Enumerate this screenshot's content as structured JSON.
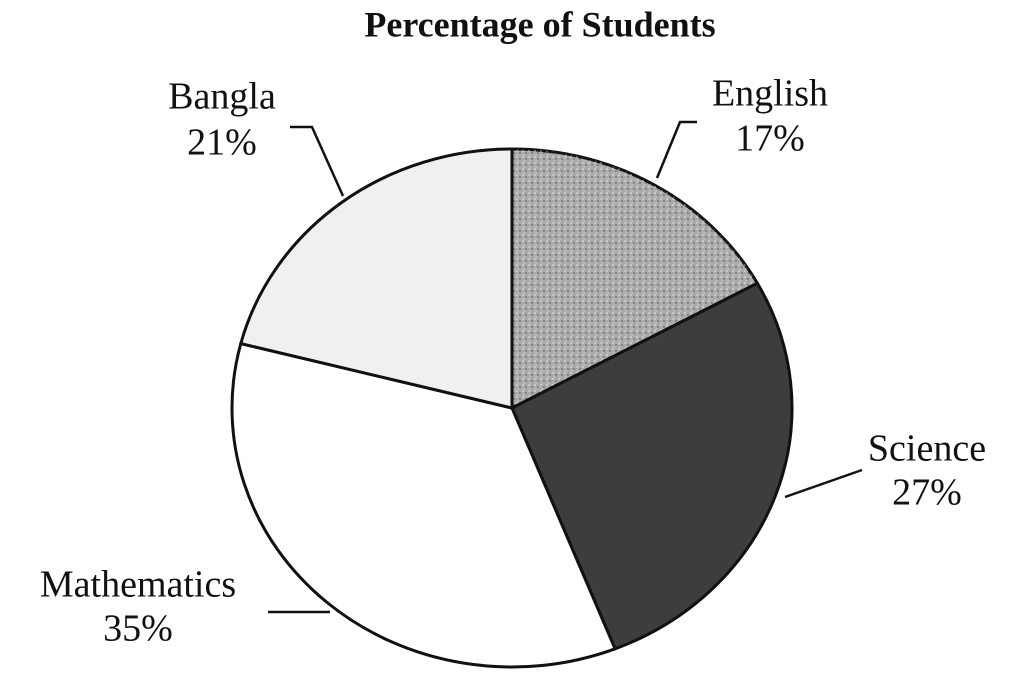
{
  "chart_data": {
    "type": "pie",
    "title": "Percentage of Students",
    "categories": [
      "English",
      "Science",
      "Mathematics",
      "Bangla"
    ],
    "values": [
      17,
      27,
      35,
      21
    ],
    "value_labels": [
      "17%",
      "27%",
      "35%",
      "21%"
    ],
    "colors": [
      "#a9a9a9",
      "#3d3d3d",
      "#ffffff",
      "#f0f0f0"
    ]
  }
}
